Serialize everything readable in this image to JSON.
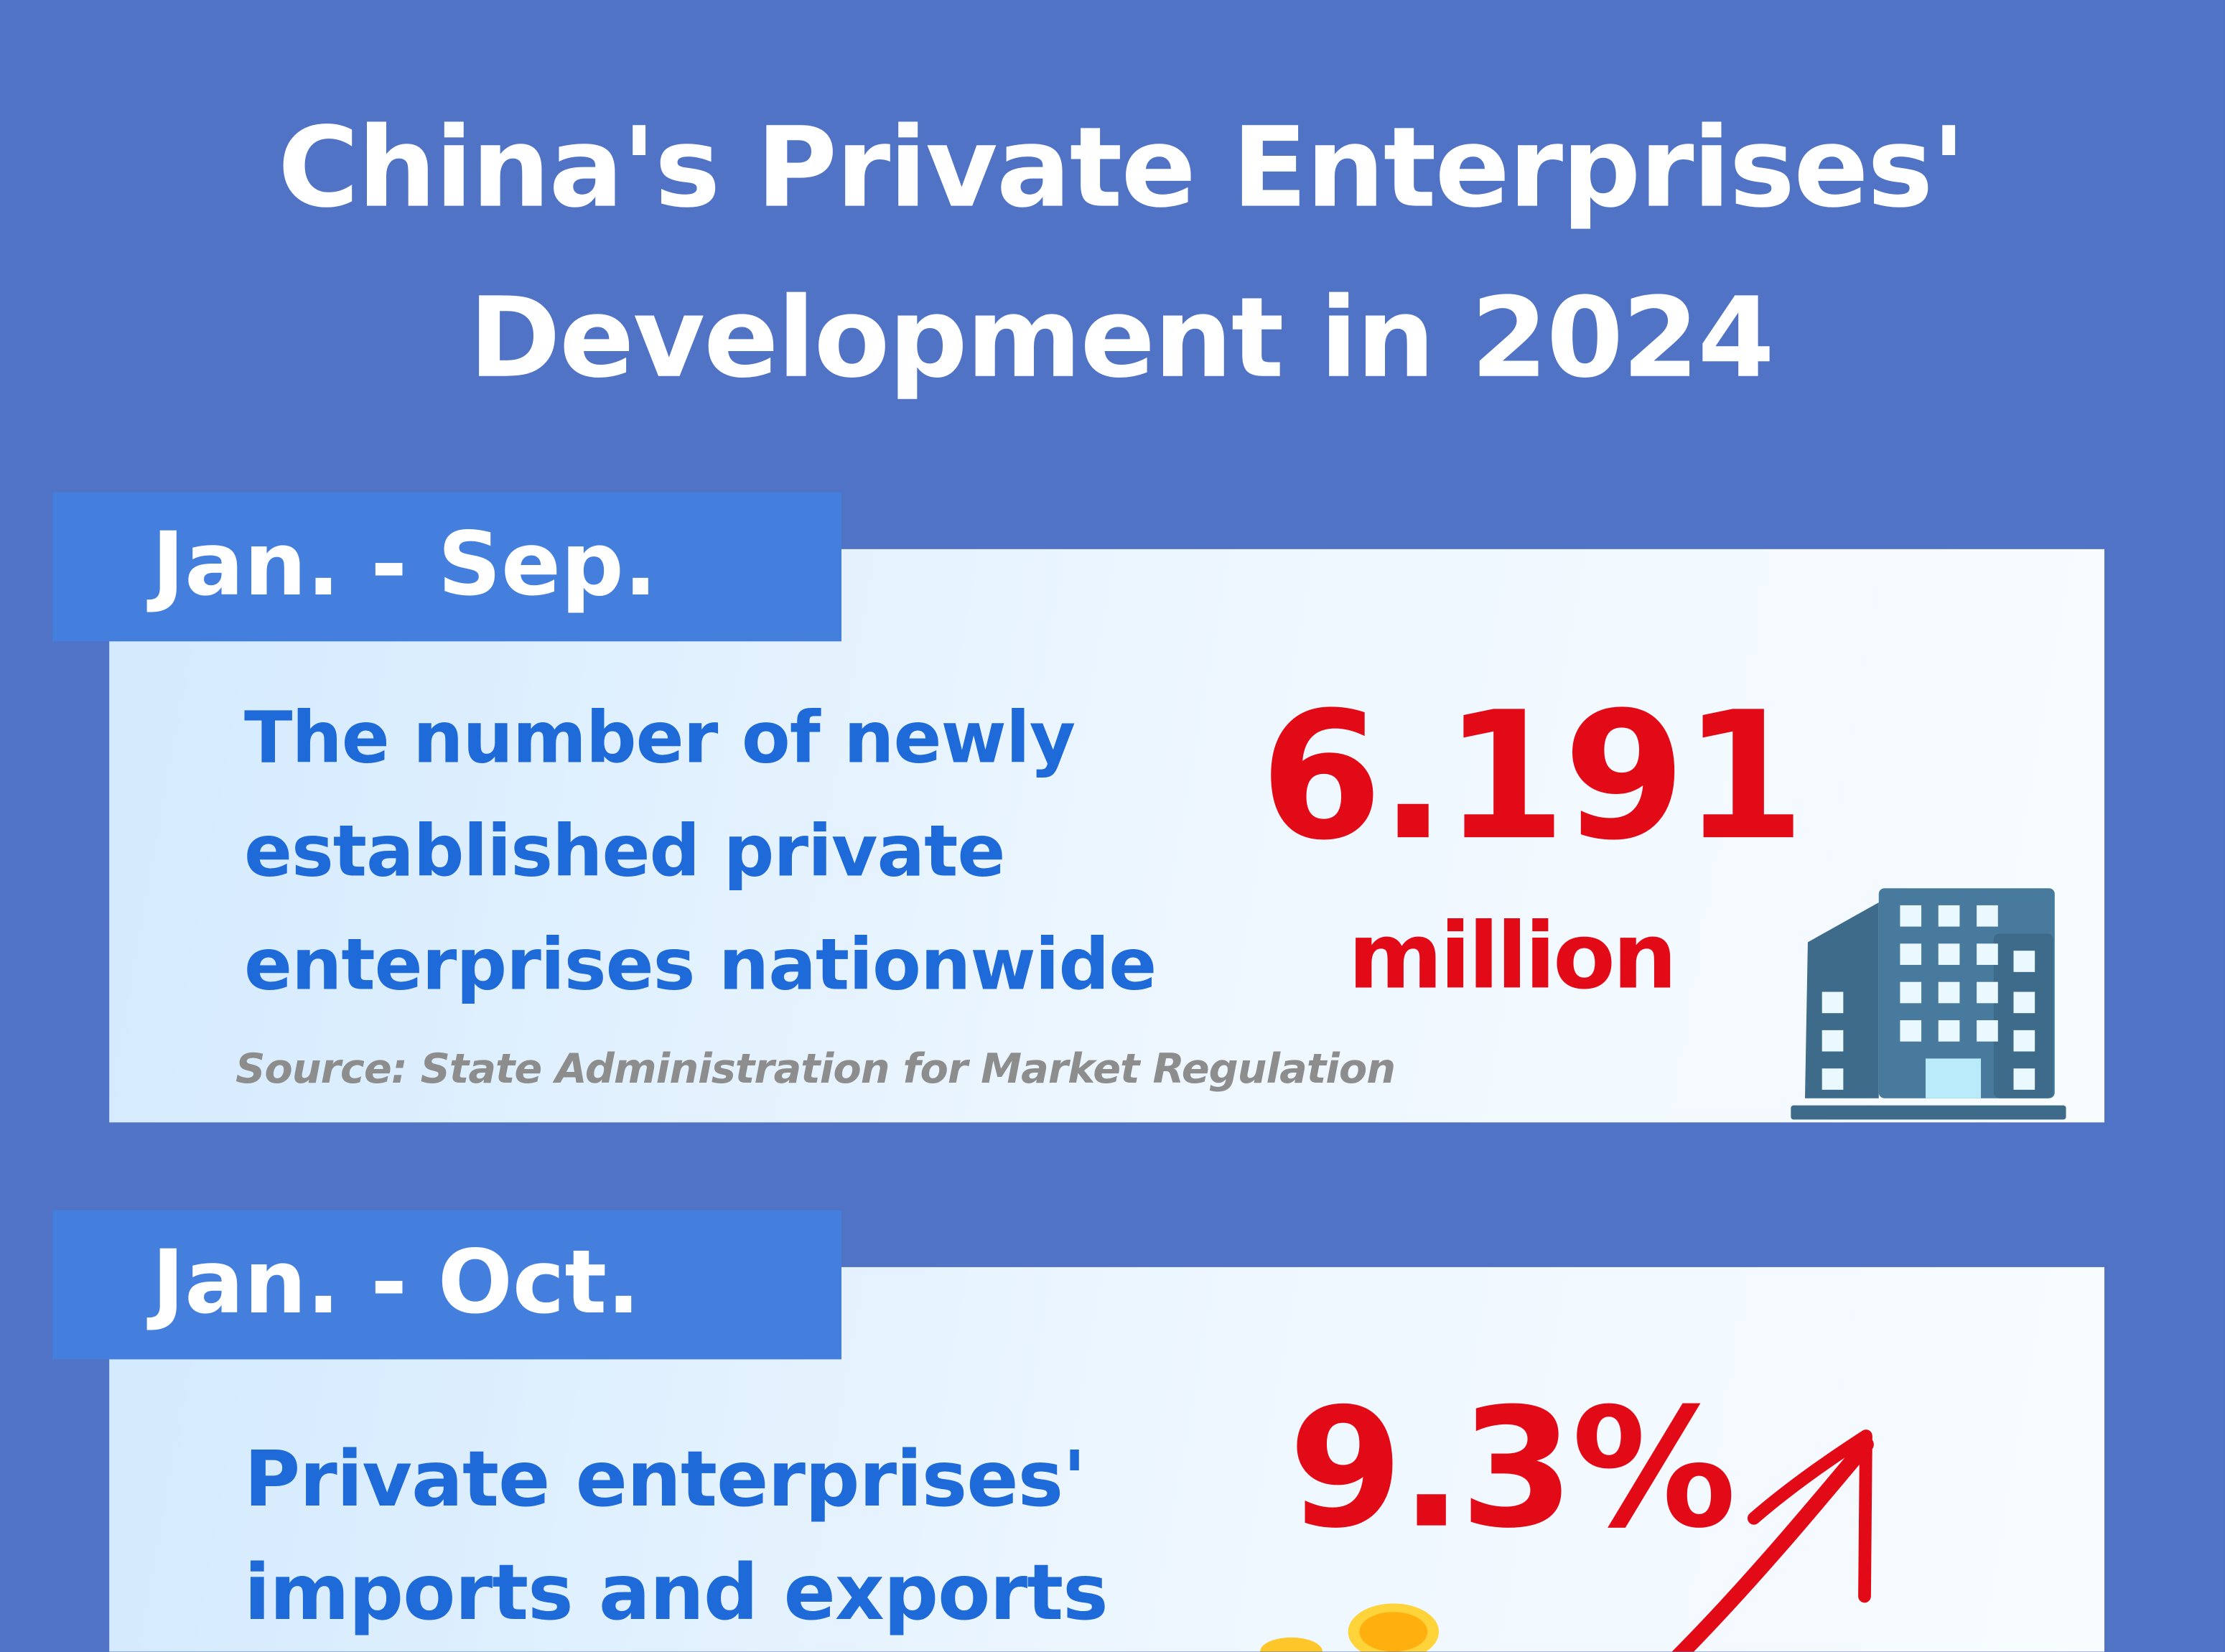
{
  "title": {
    "line1": "China's Private Enterprises'",
    "line2": "Development in 2024"
  },
  "sections": [
    {
      "period": "Jan. - Sep.",
      "lines": [
        "The number of newly",
        "established private",
        "enterprises nationwide"
      ],
      "value": "6.191",
      "unit": "million",
      "source": "Source: State Administration for Market Regulation",
      "icon": "office-building-icon"
    },
    {
      "period": "Jan. - Oct.",
      "lines": [
        "Private enterprises'",
        "imports and exports"
      ],
      "value": "9.3%",
      "icon": "upward-arrow-icon"
    }
  ],
  "colors": {
    "background": "#5073C5",
    "label": "#457FDE",
    "text_blue": "#1E6AD8",
    "highlight_red": "#E30A17"
  }
}
